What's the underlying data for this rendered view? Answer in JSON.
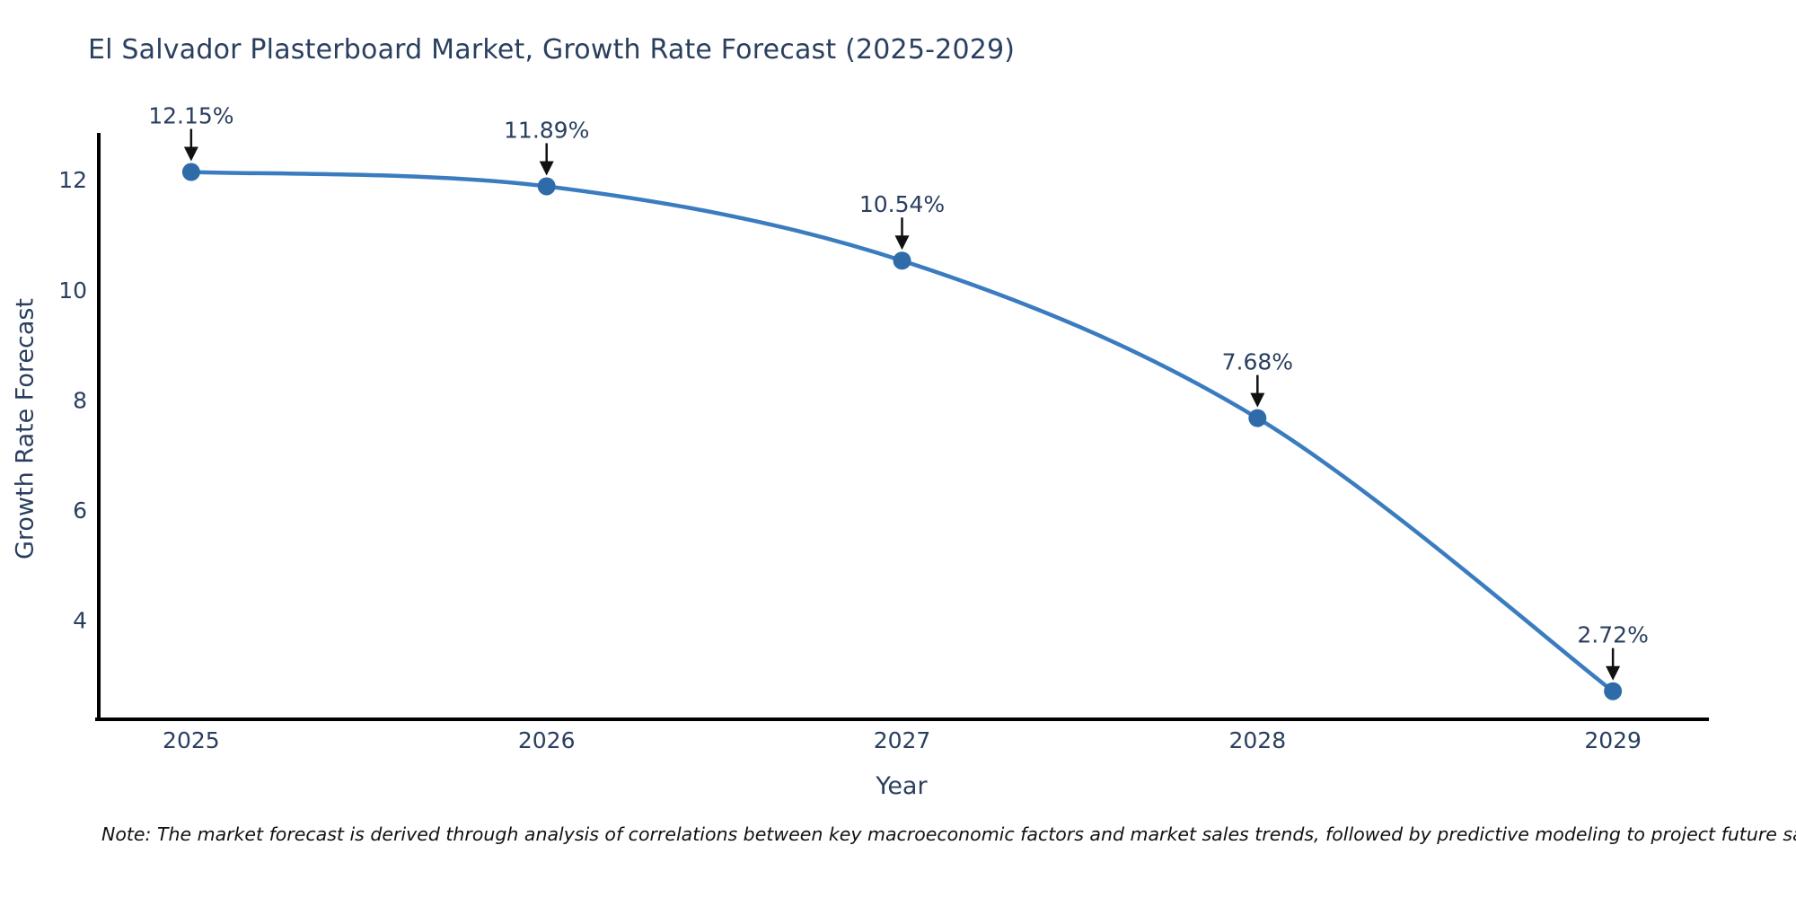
{
  "chart_data": {
    "type": "line",
    "title": "El Salvador Plasterboard Market, Growth Rate Forecast (2025-2029)",
    "xlabel": "Year",
    "ylabel": "Growth Rate Forecast",
    "x": [
      2025,
      2026,
      2027,
      2028,
      2029
    ],
    "series": [
      {
        "name": "Growth Rate Forecast",
        "values": [
          12.15,
          11.89,
          10.54,
          7.68,
          2.72
        ]
      }
    ],
    "point_labels": [
      "12.15%",
      "11.89%",
      "10.54%",
      "7.68%",
      "2.72%"
    ],
    "xticks": [
      "2025",
      "2026",
      "2027",
      "2028",
      "2029"
    ],
    "yticks": [
      4,
      6,
      8,
      10,
      12
    ],
    "xlim": [
      2024.73,
      2029.27
    ],
    "ylim": [
      2.21,
      12.86
    ],
    "grid": false,
    "legend_position": "none",
    "line_shape": "spline",
    "line_color": "#3a7cbf",
    "marker_color": "#2e6ba8",
    "axis_color": "#000000",
    "tick_color": "#2a3f5f",
    "annotation_text_color": "#2a3f5f",
    "annotation_arrow_color": "#111111"
  },
  "note": {
    "text": "Note: The market forecast is derived through analysis of correlations between key macroeconomic factors and market sales trends, followed by predictive modeling to project future sales."
  }
}
